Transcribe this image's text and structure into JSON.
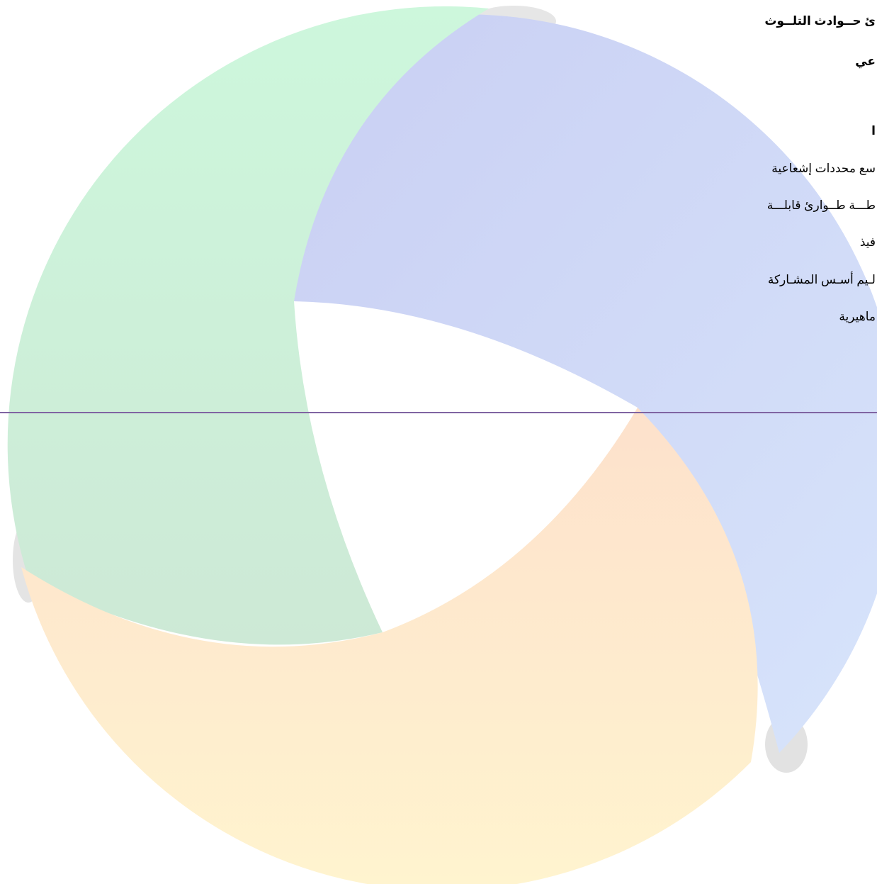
{
  "heading": {
    "lines": [
      "ئ حــوادث التلــوث",
      "عي",
      "ا"
    ]
  },
  "list": {
    "lines": [
      "سع محددات إشعاعية",
      "طـــة طــوارئ قابلـــة",
      "فيذ",
      "لـيم أسـس المشـاركة",
      "ماهيرية"
    ]
  }
}
